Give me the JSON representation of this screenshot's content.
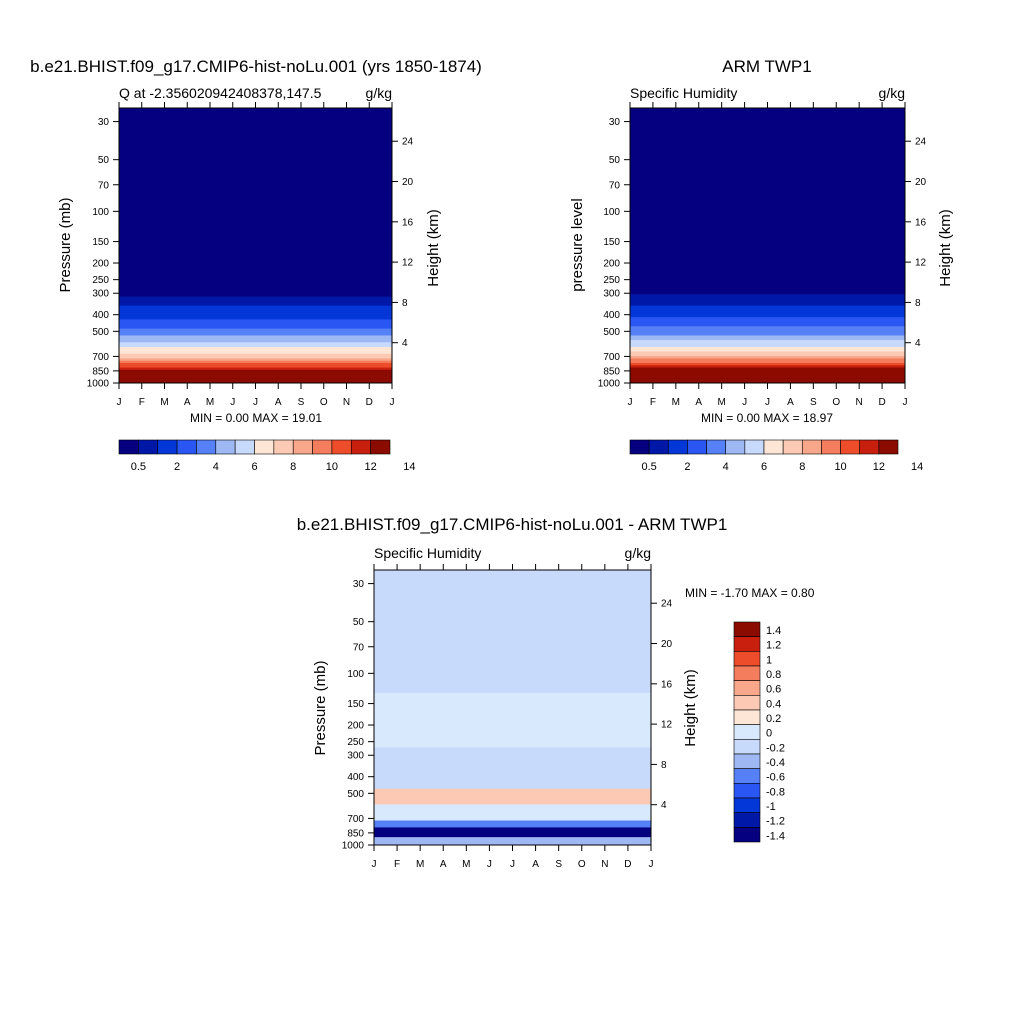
{
  "chart_data": [
    {
      "type": "heatmap",
      "title": "b.e21.BHIST.f09_g17.CMIP6-hist-noLu.001 (yrs 1850-1874)",
      "left_label": "Q at -2.356020942408378,147.5",
      "right_label": "g/kg",
      "ylabel": "Pressure (mb)",
      "ylabel_right": "Height (km)",
      "stats": "MIN =   0.00 MAX =  19.01",
      "x_ticks": [
        "J",
        "F",
        "M",
        "A",
        "M",
        "J",
        "J",
        "A",
        "S",
        "O",
        "N",
        "D",
        "J"
      ],
      "y_ticks": [
        "30",
        "50",
        "70",
        "100",
        "150",
        "200",
        "250",
        "300",
        "400",
        "500",
        "700",
        "850",
        "1000"
      ],
      "y_ticks_right": [
        "24",
        "20",
        "16",
        "12",
        "8",
        "4"
      ],
      "colorbar_labels": [
        "0.5",
        "2",
        "4",
        "6",
        "8",
        "10",
        "12",
        "14"
      ],
      "colorbar_colors": [
        "#04007f",
        "#0018a8",
        "#0437d7",
        "#2a57f3",
        "#5680f5",
        "#9db8f3",
        "#c8dafc",
        "#fde6d6",
        "#fccab4",
        "#f8a78b",
        "#f47d5e",
        "#ed4d2b",
        "#c81f0e",
        "#8c0b00"
      ],
      "ylim": [
        1000,
        25
      ],
      "profile": {
        "pressure": [
          1000,
          925,
          850,
          700,
          600,
          500,
          400,
          350,
          300,
          250,
          200,
          100,
          30
        ],
        "q": [
          18.2,
          15.0,
          12.5,
          7.9,
          5.5,
          3.4,
          1.6,
          0.9,
          0.4,
          0.15,
          0.06,
          0.003,
          0.003
        ]
      }
    },
    {
      "type": "heatmap",
      "title": "ARM TWP1",
      "left_label": "Specific Humidity",
      "right_label": "g/kg",
      "ylabel": "pressure level",
      "ylabel_right": "Height (km)",
      "stats": "MIN =   0.00 MAX =  18.97",
      "x_ticks": [
        "J",
        "F",
        "M",
        "A",
        "M",
        "J",
        "J",
        "A",
        "S",
        "O",
        "N",
        "D",
        "J"
      ],
      "y_ticks": [
        "30",
        "50",
        "70",
        "100",
        "150",
        "200",
        "250",
        "300",
        "400",
        "500",
        "700",
        "850",
        "1000"
      ],
      "y_ticks_right": [
        "24",
        "20",
        "16",
        "12",
        "8",
        "4"
      ],
      "colorbar_labels": [
        "0.5",
        "2",
        "4",
        "6",
        "8",
        "10",
        "12",
        "14"
      ],
      "colorbar_colors": [
        "#04007f",
        "#0018a8",
        "#0437d7",
        "#2a57f3",
        "#5680f5",
        "#9db8f3",
        "#c8dafc",
        "#fde6d6",
        "#fccab4",
        "#f8a78b",
        "#f47d5e",
        "#ed4d2b",
        "#c81f0e",
        "#8c0b00"
      ],
      "ylim": [
        1000,
        25
      ],
      "profile": {
        "pressure": [
          1000,
          925,
          850,
          700,
          600,
          500,
          400,
          350,
          300,
          250,
          200,
          100,
          30
        ],
        "q": [
          18.5,
          15.5,
          13.0,
          8.2,
          5.8,
          3.6,
          1.8,
          1.0,
          0.45,
          0.16,
          0.06,
          0.003,
          0.003
        ]
      }
    },
    {
      "type": "heatmap",
      "title": "b.e21.BHIST.f09_g17.CMIP6-hist-noLu.001 - ARM TWP1",
      "left_label": "Specific Humidity",
      "right_label": "g/kg",
      "ylabel": "Pressure (mb)",
      "ylabel_right": "Height (km)",
      "stats": "MIN =  -1.70 MAX =   0.80",
      "x_ticks": [
        "J",
        "F",
        "M",
        "A",
        "M",
        "J",
        "J",
        "A",
        "S",
        "O",
        "N",
        "D",
        "J"
      ],
      "y_ticks": [
        "30",
        "50",
        "70",
        "100",
        "150",
        "200",
        "250",
        "300",
        "400",
        "500",
        "700",
        "850",
        "1000"
      ],
      "y_ticks_right": [
        "24",
        "20",
        "16",
        "12",
        "8",
        "4"
      ],
      "colorbar_labels": [
        "1.4",
        "1.2",
        "1",
        "0.8",
        "0.6",
        "0.4",
        "0.2",
        "0",
        "-0.2",
        "-0.4",
        "-0.6",
        "-0.8",
        "-1",
        "-1.2",
        "-1.4"
      ],
      "colorbar_colors": [
        "#8c0b00",
        "#c81f0e",
        "#ed4d2b",
        "#f47d5e",
        "#f8a78b",
        "#fccab4",
        "#fde6d6",
        "#d8e9fd",
        "#c8dafc",
        "#9db8f3",
        "#5680f5",
        "#2a57f3",
        "#0437d7",
        "#0018a8",
        "#04007f"
      ],
      "ylim": [
        1000,
        25
      ],
      "diff_bands": [
        {
          "p_top": 25,
          "p_bottom": 130,
          "value": -0.1
        },
        {
          "p_top": 130,
          "p_bottom": 270,
          "value": 0.15
        },
        {
          "p_top": 270,
          "p_bottom": 470,
          "value": -0.1
        },
        {
          "p_top": 470,
          "p_bottom": 580,
          "value": 0.45
        },
        {
          "p_top": 580,
          "p_bottom": 720,
          "value": 0.15
        },
        {
          "p_top": 720,
          "p_bottom": 790,
          "value": -0.5
        },
        {
          "p_top": 790,
          "p_bottom": 900,
          "value": -1.5
        },
        {
          "p_top": 900,
          "p_bottom": 1000,
          "value": -0.3
        }
      ]
    }
  ]
}
